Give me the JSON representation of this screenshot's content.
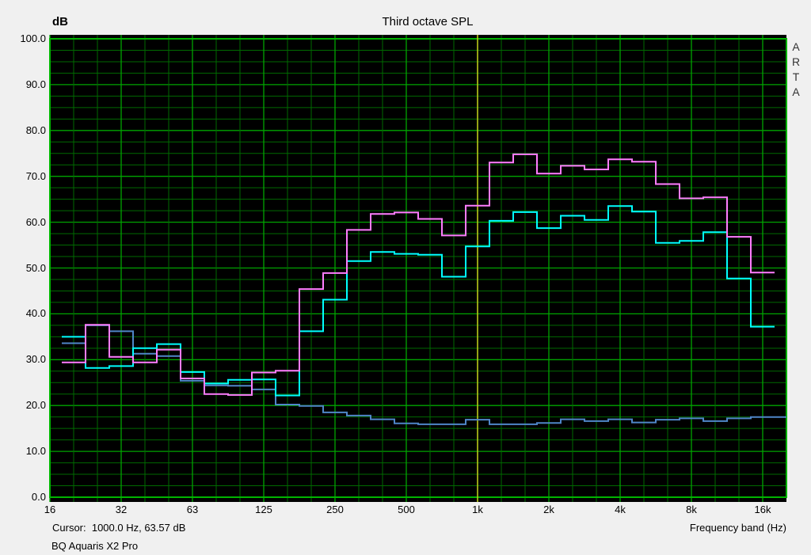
{
  "window": {
    "background": "#f0f0f0"
  },
  "header": {
    "y_axis_unit": "dB",
    "title": "Third octave SPL"
  },
  "side_branding": {
    "text": "ARTA",
    "letters": [
      "A",
      "R",
      "T",
      "A"
    ]
  },
  "footer": {
    "cursor_readout": "Cursor:  1000.0 Hz, 63.57 dB",
    "device_label": "BQ Aquaris X2 Pro",
    "x_axis_label": "Frequency band (Hz)"
  },
  "chart_data": {
    "type": "line",
    "subtype": "third-octave-band-steps",
    "title": "Third octave SPL",
    "xlabel": "Frequency band (Hz)",
    "ylabel": "dB",
    "ylim": [
      0,
      100
    ],
    "y_major_step_db": 10,
    "y_minor_step_db": 2.5,
    "grid_on": true,
    "legend": "none",
    "plot_background": "#000000",
    "grid": {
      "major_color": "#00a400",
      "minor_color": "#006a00",
      "border_color": "#00b400"
    },
    "y_tick_labels": [
      "100.0",
      "90.0",
      "80.0",
      "70.0",
      "60.0",
      "50.0",
      "40.0",
      "30.0",
      "20.0",
      "10.0",
      "0.0"
    ],
    "x_ticks": [
      {
        "label": "16",
        "band": 0
      },
      {
        "label": "32",
        "band": 3
      },
      {
        "label": "63",
        "band": 6
      },
      {
        "label": "125",
        "band": 9
      },
      {
        "label": "250",
        "band": 12
      },
      {
        "label": "500",
        "band": 15
      },
      {
        "label": "1k",
        "band": 18
      },
      {
        "label": "2k",
        "band": 21
      },
      {
        "label": "4k",
        "band": 24
      },
      {
        "label": "8k",
        "band": 27
      },
      {
        "label": "16k",
        "band": 30
      }
    ],
    "bands_hz": [
      "16",
      "20",
      "25",
      "31.5",
      "40",
      "50",
      "63",
      "80",
      "100",
      "125",
      "160",
      "200",
      "250",
      "315",
      "400",
      "500",
      "630",
      "800",
      "1000",
      "1250",
      "1600",
      "2000",
      "2500",
      "3150",
      "4000",
      "5000",
      "6300",
      "8000",
      "10000",
      "12500",
      "16000"
    ],
    "cursor": {
      "band": 18,
      "frequency_hz": 1000.0,
      "value_db": 63.57,
      "color": "#c8c81c"
    },
    "series": [
      {
        "name": "blue (noise floor)",
        "color": "#4f86c8",
        "extend_to_right_edge": true,
        "values": [
          null,
          33.6,
          37.5,
          36.2,
          31.3,
          30.8,
          25.4,
          24.4,
          24.3,
          23.5,
          20.2,
          19.9,
          18.5,
          17.8,
          17.0,
          16.1,
          15.9,
          15.9,
          16.9,
          15.9,
          15.9,
          16.2,
          17.0,
          16.6,
          17.0,
          16.3,
          16.9,
          17.2,
          16.6,
          17.2,
          17.5
        ]
      },
      {
        "name": "cyan SPL",
        "color": "#00ffff",
        "extend_to_right_edge": false,
        "values": [
          null,
          35.0,
          28.2,
          28.6,
          32.5,
          33.4,
          27.3,
          24.8,
          25.6,
          25.7,
          22.2,
          36.2,
          43.1,
          51.5,
          53.5,
          53.1,
          52.9,
          48.1,
          54.7,
          60.3,
          62.2,
          58.7,
          61.4,
          60.5,
          63.5,
          62.3,
          55.5,
          55.9,
          57.8,
          47.7,
          37.2
        ]
      },
      {
        "name": "magenta SPL",
        "color": "#ff7dff",
        "extend_to_right_edge": false,
        "values": [
          null,
          29.4,
          37.6,
          30.6,
          29.4,
          32.2,
          25.9,
          22.5,
          22.3,
          27.2,
          27.6,
          45.4,
          48.9,
          58.3,
          61.8,
          62.1,
          60.7,
          57.1,
          63.6,
          73.0,
          74.8,
          70.6,
          72.3,
          71.5,
          73.7,
          73.2,
          68.3,
          65.2,
          65.4,
          56.8,
          49.0
        ]
      }
    ]
  }
}
